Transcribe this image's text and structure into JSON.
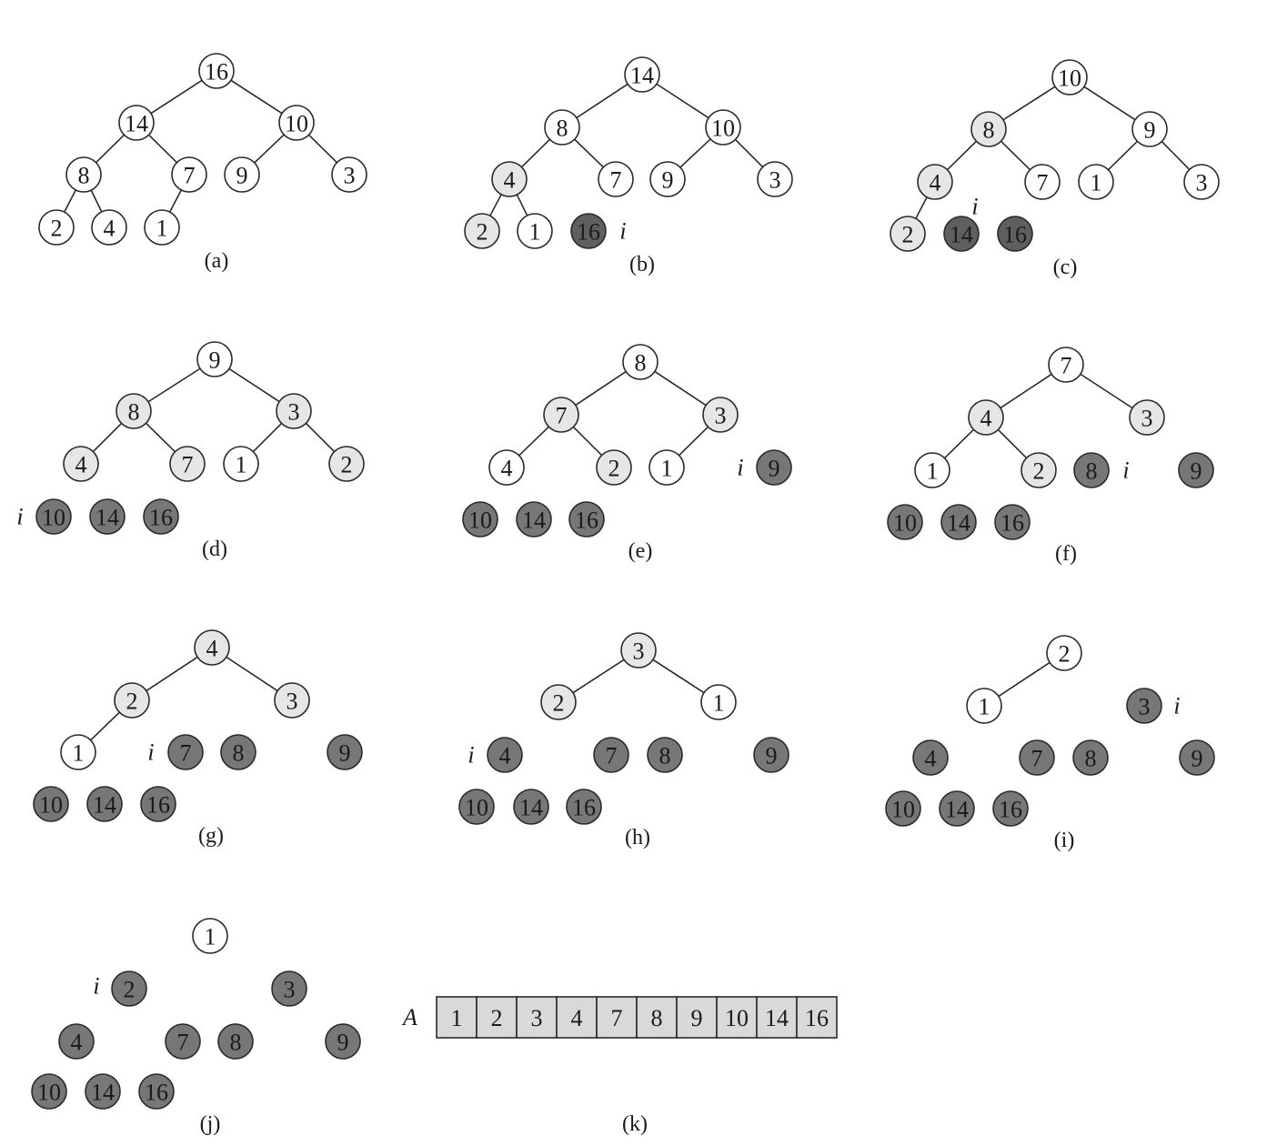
{
  "colors": {
    "open": "#ffffff",
    "light": "#e6e6e6",
    "sorted": "#777777",
    "dark": "#5f5f5f"
  },
  "pointer_label": "i",
  "panels": [
    {
      "caption": "(a)",
      "nodes": [
        "16",
        "14",
        "10",
        "8",
        "7",
        "9",
        "3",
        "2",
        "4",
        "1"
      ]
    },
    {
      "caption": "(b)",
      "nodes": [
        "14",
        "8",
        "10",
        "4",
        "7",
        "9",
        "3",
        "2",
        "1",
        "16"
      ]
    },
    {
      "caption": "(c)",
      "nodes": [
        "10",
        "8",
        "9",
        "4",
        "7",
        "1",
        "3",
        "2",
        "14",
        "16"
      ]
    },
    {
      "caption": "(d)",
      "nodes": [
        "9",
        "8",
        "3",
        "4",
        "7",
        "1",
        "2",
        "10",
        "14",
        "16"
      ]
    },
    {
      "caption": "(e)",
      "nodes": [
        "8",
        "7",
        "3",
        "4",
        "2",
        "1",
        "9",
        "10",
        "14",
        "16"
      ]
    },
    {
      "caption": "(f)",
      "nodes": [
        "7",
        "4",
        "3",
        "1",
        "2",
        "8",
        "9",
        "10",
        "14",
        "16"
      ]
    },
    {
      "caption": "(g)",
      "nodes": [
        "4",
        "2",
        "3",
        "1",
        "7",
        "8",
        "9",
        "10",
        "14",
        "16"
      ]
    },
    {
      "caption": "(h)",
      "nodes": [
        "3",
        "2",
        "1",
        "4",
        "7",
        "8",
        "9",
        "10",
        "14",
        "16"
      ]
    },
    {
      "caption": "(i)",
      "nodes": [
        "2",
        "1",
        "3",
        "4",
        "7",
        "8",
        "9",
        "10",
        "14",
        "16"
      ]
    },
    {
      "caption": "(j)",
      "nodes": [
        "1",
        "2",
        "3",
        "4",
        "7",
        "8",
        "9",
        "10",
        "14",
        "16"
      ]
    }
  ],
  "array": {
    "label": "A",
    "values": [
      "1",
      "2",
      "3",
      "4",
      "7",
      "8",
      "9",
      "10",
      "14",
      "16"
    ],
    "caption": "(k)"
  }
}
